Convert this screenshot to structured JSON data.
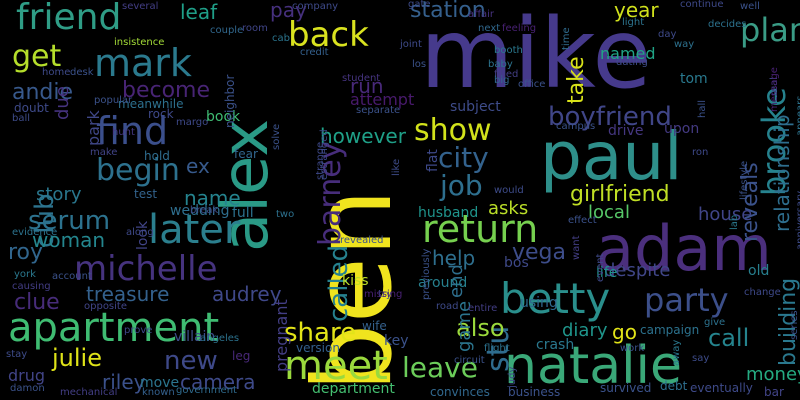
{
  "words": [
    {
      "text": "ben",
      "color": "#f0e41e"
    },
    {
      "text": "mike",
      "color": "#463a8c"
    },
    {
      "text": "paul",
      "color": "#2e8f8a"
    },
    {
      "text": "alex",
      "color": "#2a9a86"
    },
    {
      "text": "adam",
      "color": "#4b2f7d"
    },
    {
      "text": "natalie",
      "color": "#3aa878"
    },
    {
      "text": "betty",
      "color": "#2a8f8c"
    },
    {
      "text": "apartment",
      "color": "#3fbc72"
    },
    {
      "text": "later",
      "color": "#2b7f8e"
    },
    {
      "text": "michelle",
      "color": "#46337f"
    },
    {
      "text": "return",
      "color": "#76d04f"
    },
    {
      "text": "meet",
      "color": "#9ad93d"
    },
    {
      "text": "party",
      "color": "#3c4f8a"
    },
    {
      "text": "find",
      "color": "#3b4f8c"
    },
    {
      "text": "mark",
      "color": "#2b7a8e"
    },
    {
      "text": "friend",
      "color": "#2f9d86"
    },
    {
      "text": "back",
      "color": "#d9e21f"
    },
    {
      "text": "show",
      "color": "#d2e21b"
    },
    {
      "text": "brooke",
      "color": "#26828e"
    },
    {
      "text": "barney",
      "color": "#472d7b"
    },
    {
      "text": "plan",
      "color": "#3a9c86"
    },
    {
      "text": "city",
      "color": "#33628d"
    },
    {
      "text": "boyfriend",
      "color": "#404688"
    },
    {
      "text": "job",
      "color": "#2e6f8e"
    },
    {
      "text": "begin",
      "color": "#2d718e"
    },
    {
      "text": "get",
      "color": "#b5de2b"
    },
    {
      "text": "called",
      "color": "#26818e"
    },
    {
      "text": "stu",
      "color": "#2f6c8e"
    },
    {
      "text": "club",
      "color": "#2c738e"
    },
    {
      "text": "serum",
      "color": "#2c728e"
    },
    {
      "text": "leave",
      "color": "#6ccd5a"
    },
    {
      "text": "girlfriend",
      "color": "#c0df25"
    },
    {
      "text": "new",
      "color": "#3e4989"
    },
    {
      "text": "julie",
      "color": "#dfe318"
    },
    {
      "text": "vega",
      "color": "#3d4d8a"
    },
    {
      "text": "building",
      "color": "#2a788e"
    },
    {
      "text": "relationship",
      "color": "#2e6e8e"
    },
    {
      "text": "reveals",
      "color": "#3b528b"
    },
    {
      "text": "also",
      "color": "#9bd93c"
    },
    {
      "text": "call",
      "color": "#25848e"
    },
    {
      "text": "share",
      "color": "#e2e418"
    },
    {
      "text": "station",
      "color": "#35608d"
    },
    {
      "text": "andie",
      "color": "#38598c"
    },
    {
      "text": "become",
      "color": "#482475"
    },
    {
      "text": "woman",
      "color": "#24868e"
    },
    {
      "text": "treasure",
      "color": "#34618d"
    },
    {
      "text": "audrey",
      "color": "#3f4889"
    },
    {
      "text": "riley",
      "color": "#3b518b"
    },
    {
      "text": "camera",
      "color": "#3e4a89"
    },
    {
      "text": "clue",
      "color": "#472c7a"
    },
    {
      "text": "roy",
      "color": "#31668e"
    },
    {
      "text": "take",
      "color": "#d8e219"
    },
    {
      "text": "however",
      "color": "#1fa088"
    },
    {
      "text": "help",
      "color": "#2e6f8e"
    },
    {
      "text": "year",
      "color": "#d0e11c"
    },
    {
      "text": "pay",
      "color": "#46307e"
    },
    {
      "text": "leaf",
      "color": "#1f9f88"
    },
    {
      "text": "ex",
      "color": "#375a8c"
    },
    {
      "text": "name",
      "color": "#25838e"
    },
    {
      "text": "run",
      "color": "#482979"
    },
    {
      "text": "attempt",
      "color": "#481a6c"
    },
    {
      "text": "park",
      "color": "#3f4788"
    },
    {
      "text": "due",
      "color": "#46337f"
    },
    {
      "text": "story",
      "color": "#2a778e"
    },
    {
      "text": "asks",
      "color": "#bade28"
    },
    {
      "text": "local",
      "color": "#56c667"
    },
    {
      "text": "house",
      "color": "#404588"
    },
    {
      "text": "game",
      "color": "#2b758e"
    },
    {
      "text": "diary",
      "color": "#1f958b"
    },
    {
      "text": "go",
      "color": "#e1e418"
    },
    {
      "text": "money",
      "color": "#25ab82"
    },
    {
      "text": "despite",
      "color": "#404688"
    },
    {
      "text": "life",
      "color": "#21918c"
    },
    {
      "text": "old",
      "color": "#277f8e"
    },
    {
      "text": "end",
      "color": "#2e6f8e"
    },
    {
      "text": "kiss",
      "color": "#bddf26"
    },
    {
      "text": "flat",
      "color": "#3e4989"
    },
    {
      "text": "around",
      "color": "#27808e"
    },
    {
      "text": "using",
      "color": "#30688e"
    },
    {
      "text": "pregnant",
      "color": "#433e85"
    },
    {
      "text": "department",
      "color": "#44bf70"
    },
    {
      "text": "book",
      "color": "#3fbc73"
    },
    {
      "text": "wedding",
      "color": "#2e6e8e"
    },
    {
      "text": "full",
      "color": "#2c728e"
    },
    {
      "text": "villain",
      "color": "#3d4e8a"
    },
    {
      "text": "drug",
      "color": "#414487"
    },
    {
      "text": "move",
      "color": "#2b758e"
    },
    {
      "text": "look",
      "color": "#414487"
    },
    {
      "text": "crash",
      "color": "#2a788e"
    },
    {
      "text": "key",
      "color": "#3b528b"
    },
    {
      "text": "named",
      "color": "#20a486"
    },
    {
      "text": "tom",
      "color": "#29798e"
    },
    {
      "text": "subject",
      "color": "#3e4c8a"
    },
    {
      "text": "drive",
      "color": "#453781"
    },
    {
      "text": "upon",
      "color": "#443a83"
    },
    {
      "text": "husband",
      "color": "#1f948c"
    },
    {
      "text": "bos",
      "color": "#3e4989"
    },
    {
      "text": "neighbor",
      "color": "#3b528b"
    },
    {
      "text": "meanwhile",
      "color": "#2d708e"
    },
    {
      "text": "test",
      "color": "#33638d"
    },
    {
      "text": "version",
      "color": "#34608d"
    },
    {
      "text": "survived",
      "color": "#3b528b"
    },
    {
      "text": "convinces",
      "color": "#31688e"
    },
    {
      "text": "business",
      "color": "#3b528b"
    },
    {
      "text": "debt",
      "color": "#2e6f8e"
    },
    {
      "text": "eventually",
      "color": "#3e4a89"
    },
    {
      "text": "bar",
      "color": "#414487"
    },
    {
      "text": "campaign",
      "color": "#2c728e"
    },
    {
      "text": "wife",
      "color": "#34618d"
    },
    {
      "text": "leg",
      "color": "#482878"
    },
    {
      "text": "fear",
      "color": "#31668e"
    },
    {
      "text": "hold",
      "color": "#2f6c8e"
    },
    {
      "text": "rock",
      "color": "#3e4989"
    },
    {
      "text": "doubt",
      "color": "#3e4a89"
    },
    {
      "text": "make",
      "color": "#414487"
    },
    {
      "text": "popular",
      "color": "#3b528b"
    },
    {
      "text": "hunt",
      "color": "#453882"
    },
    {
      "text": "break",
      "color": "#3e4c8a"
    },
    {
      "text": "two",
      "color": "#2d718e"
    },
    {
      "text": "account",
      "color": "#3b528b"
    },
    {
      "text": "york",
      "color": "#2a788e"
    },
    {
      "text": "causing",
      "color": "#433d84"
    },
    {
      "text": "opposite",
      "color": "#404588"
    },
    {
      "text": "prove",
      "color": "#3e4a89"
    },
    {
      "text": "angeles",
      "color": "#2c728e"
    },
    {
      "text": "stay",
      "color": "#3e4c8a"
    },
    {
      "text": "damon",
      "color": "#3b528b"
    },
    {
      "text": "mechanical",
      "color": "#433e85"
    },
    {
      "text": "known",
      "color": "#34608d"
    },
    {
      "text": "government",
      "color": "#2f6b8e"
    },
    {
      "text": "evidence",
      "color": "#2c738e"
    },
    {
      "text": "along",
      "color": "#3e4989"
    },
    {
      "text": "company",
      "color": "#3e4a89"
    },
    {
      "text": "student",
      "color": "#463480"
    },
    {
      "text": "separate",
      "color": "#3b528b"
    },
    {
      "text": "insistence",
      "color": "#a2da37"
    },
    {
      "text": "couple",
      "color": "#31688e"
    },
    {
      "text": "several",
      "color": "#433e85"
    },
    {
      "text": "room",
      "color": "#404588"
    },
    {
      "text": "cab",
      "color": "#2b758e"
    },
    {
      "text": "credit",
      "color": "#34608d"
    },
    {
      "text": "gate",
      "color": "#3e4c8a"
    },
    {
      "text": "affair",
      "color": "#46327e"
    },
    {
      "text": "next",
      "color": "#31688e"
    },
    {
      "text": "feeling",
      "color": "#482173"
    },
    {
      "text": "well",
      "color": "#3b528b"
    },
    {
      "text": "decides",
      "color": "#2c728e"
    },
    {
      "text": "continue",
      "color": "#3e4989"
    },
    {
      "text": "joint",
      "color": "#3e4a89"
    },
    {
      "text": "booth",
      "color": "#2a788e"
    },
    {
      "text": "filled",
      "color": "#433e85"
    },
    {
      "text": "office",
      "color": "#3b528b"
    },
    {
      "text": "time",
      "color": "#2f6b8e"
    },
    {
      "text": "baby",
      "color": "#2c728e"
    },
    {
      "text": "big",
      "color": "#31688e"
    },
    {
      "text": "dating",
      "color": "#3e4c8a"
    },
    {
      "text": "way",
      "color": "#2d718e"
    },
    {
      "text": "light",
      "color": "#2c738e"
    },
    {
      "text": "day",
      "color": "#3e4a89"
    },
    {
      "text": "hall",
      "color": "#3b528b"
    },
    {
      "text": "ron",
      "color": "#3e4989"
    },
    {
      "text": "lab",
      "color": "#2a788e"
    },
    {
      "text": "lifestyle",
      "color": "#3b528b"
    },
    {
      "text": "appears",
      "color": "#2c728e"
    },
    {
      "text": "anniversary",
      "color": "#3e4c8a"
    },
    {
      "text": "series",
      "color": "#3b528b"
    },
    {
      "text": "change",
      "color": "#3e4989"
    },
    {
      "text": "give",
      "color": "#2c728e"
    },
    {
      "text": "say",
      "color": "#3e4c8a"
    },
    {
      "text": "work",
      "color": "#3b528b"
    },
    {
      "text": "away",
      "color": "#2a788e"
    },
    {
      "text": "event",
      "color": "#3e4989"
    },
    {
      "text": "want",
      "color": "#433e85"
    },
    {
      "text": "effect",
      "color": "#3b528b"
    },
    {
      "text": "would",
      "color": "#3e4c8a"
    },
    {
      "text": "flight",
      "color": "#2c728e"
    },
    {
      "text": "circuit",
      "color": "#3b528b"
    },
    {
      "text": "judy",
      "color": "#3e4989"
    },
    {
      "text": "entire",
      "color": "#433e85"
    },
    {
      "text": "road",
      "color": "#3e4a89"
    },
    {
      "text": "previously",
      "color": "#3b528b"
    },
    {
      "text": "try",
      "color": "#3e4c8a"
    },
    {
      "text": "missing",
      "color": "#482173"
    },
    {
      "text": "revealed",
      "color": "#3b528b"
    },
    {
      "text": "estranged",
      "color": "#3e4989"
    },
    {
      "text": "strange",
      "color": "#3e4989"
    },
    {
      "text": "solve",
      "color": "#3b528b"
    },
    {
      "text": "like",
      "color": "#3e4c8a"
    },
    {
      "text": "margo",
      "color": "#3e4989"
    },
    {
      "text": "los",
      "color": "#3b528b"
    },
    {
      "text": "home",
      "color": "#3e4a89"
    },
    {
      "text": "desk",
      "color": "#3b528b"
    },
    {
      "text": "ball",
      "color": "#3e4c8a"
    },
    {
      "text": "real",
      "color": "#3e4989"
    },
    {
      "text": "campus",
      "color": "#3b528b"
    },
    {
      "text": "message",
      "color": "#482173"
    },
    {
      "text": "local",
      "color": "#56c667"
    }
  ]
}
